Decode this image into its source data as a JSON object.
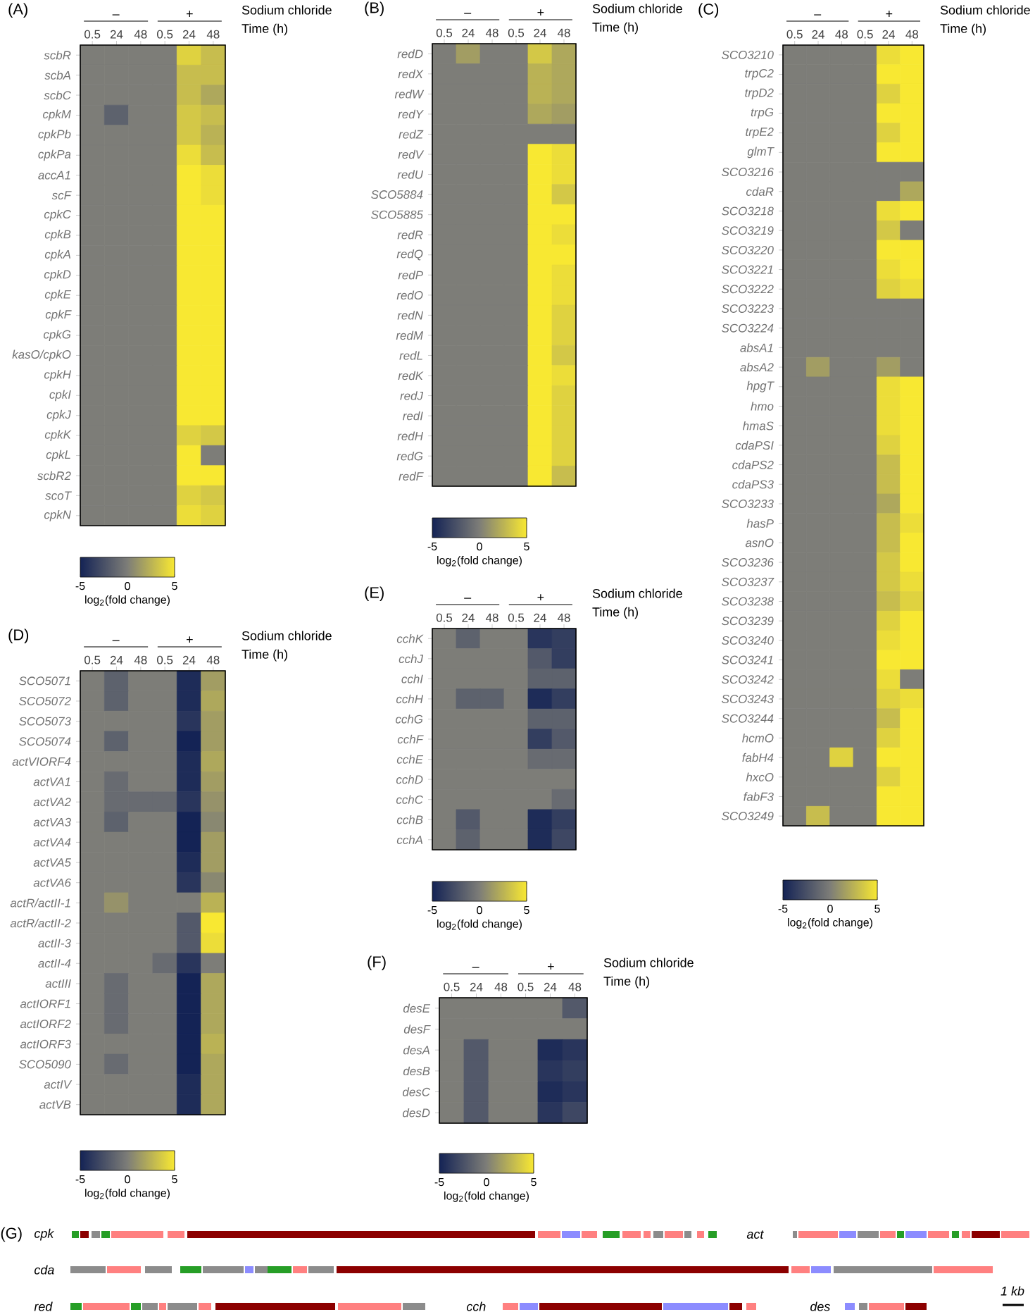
{
  "chart_data": [
    {
      "type": "heatmap",
      "title": "(A)",
      "xlabel": "Time (h)",
      "clabel": "log$_{2}$(fold change)",
      "annotations": [
        "–",
        "+",
        "Sodium chloride"
      ],
      "categories": [
        "0.5",
        "24",
        "48",
        "0.5",
        "24",
        "48"
      ],
      "y_categories": [
        "scbR",
        "scbA",
        "scbC",
        "cpkM",
        "cpkPb",
        "cpkPa",
        "accA1",
        "scF",
        "cpkC",
        "cpkB",
        "cpkA",
        "cpkD",
        "cpkE",
        "cpkF",
        "cpkG",
        "kasO/cpkO",
        "cpkH",
        "cpkI",
        "cpkJ",
        "cpkK",
        "cpkL",
        "scbR2",
        "scoT",
        "cpkN"
      ],
      "cells": [
        [
          0,
          0,
          0,
          0,
          4,
          3
        ],
        [
          0,
          0,
          0,
          0,
          3,
          3
        ],
        [
          0,
          0,
          0,
          0,
          3,
          2
        ],
        [
          0,
          -1.5,
          0,
          0,
          3.5,
          3
        ],
        [
          0,
          0,
          0,
          0,
          3.5,
          2.5
        ],
        [
          0,
          0,
          0,
          0,
          4.5,
          3
        ],
        [
          0,
          0,
          0,
          0,
          5,
          4.5
        ],
        [
          0,
          0,
          0,
          0,
          5,
          4.5
        ],
        [
          0,
          0,
          0,
          0,
          5,
          5
        ],
        [
          0,
          0,
          0,
          0,
          5,
          5
        ],
        [
          0,
          0,
          0,
          0,
          5,
          5
        ],
        [
          0,
          0,
          0,
          0,
          5,
          5
        ],
        [
          0,
          0,
          0,
          0,
          5,
          5
        ],
        [
          0,
          0,
          0,
          0,
          5,
          5
        ],
        [
          0,
          0,
          0,
          0,
          5,
          5
        ],
        [
          0,
          0,
          0,
          0,
          5,
          5
        ],
        [
          0,
          0,
          0,
          0,
          5,
          5
        ],
        [
          0,
          0,
          0,
          0,
          5,
          5
        ],
        [
          0,
          0,
          0,
          0,
          5,
          5
        ],
        [
          0,
          0,
          0,
          0,
          4,
          3.5
        ],
        [
          0,
          0,
          0,
          0,
          5,
          0
        ],
        [
          0,
          0,
          0,
          0,
          5,
          5
        ],
        [
          0,
          0,
          0,
          0,
          4,
          3.5
        ],
        [
          0,
          0,
          0,
          0,
          4.5,
          4
        ]
      ],
      "clim": [
        -5,
        5
      ],
      "cticks": [
        -5,
        0,
        5
      ]
    },
    {
      "type": "heatmap",
      "title": "(B)",
      "xlabel": "Time (h)",
      "clabel": "log$_{2}$(fold change)",
      "annotations": [
        "–",
        "+",
        "Sodium chloride"
      ],
      "categories": [
        "0.5",
        "24",
        "48",
        "0.5",
        "24",
        "48"
      ],
      "y_categories": [
        "redD",
        "redX",
        "redW",
        "redY",
        "redZ",
        "redV",
        "redU",
        "SCO5884",
        "SCO5885",
        "redR",
        "redQ",
        "redP",
        "redO",
        "redN",
        "redM",
        "redL",
        "redK",
        "redJ",
        "redI",
        "redH",
        "redG",
        "redF"
      ],
      "cells": [
        [
          0,
          1.5,
          0,
          0,
          3.5,
          2
        ],
        [
          0,
          0,
          0,
          0,
          2.5,
          2
        ],
        [
          0,
          0,
          0,
          0,
          2.5,
          2
        ],
        [
          0,
          0,
          0,
          0,
          2,
          1.5
        ],
        [
          0,
          0,
          0,
          0,
          0,
          0
        ],
        [
          0,
          0,
          0,
          0,
          5,
          4.5
        ],
        [
          0,
          0,
          0,
          0,
          5,
          4.5
        ],
        [
          0,
          0,
          0,
          0,
          5,
          3.5
        ],
        [
          0,
          0,
          0,
          0,
          5,
          5
        ],
        [
          0,
          0,
          0,
          0,
          5,
          4.5
        ],
        [
          0,
          0,
          0,
          0,
          5,
          5
        ],
        [
          0,
          0,
          0,
          0,
          5,
          4.5
        ],
        [
          0,
          0,
          0,
          0,
          5,
          4.5
        ],
        [
          0,
          0,
          0,
          0,
          5,
          4
        ],
        [
          0,
          0,
          0,
          0,
          5,
          4
        ],
        [
          0,
          0,
          0,
          0,
          5,
          3.5
        ],
        [
          0,
          0,
          0,
          0,
          5,
          4.5
        ],
        [
          0,
          0,
          0,
          0,
          5,
          4
        ],
        [
          0,
          0,
          0,
          0,
          5,
          4
        ],
        [
          0,
          0,
          0,
          0,
          5,
          4
        ],
        [
          0,
          0,
          0,
          0,
          5,
          4
        ],
        [
          0,
          0,
          0,
          0,
          5,
          3
        ]
      ],
      "clim": [
        -5,
        5
      ],
      "cticks": [
        -5,
        0,
        5
      ]
    },
    {
      "type": "heatmap",
      "title": "(C)",
      "xlabel": "Time (h)",
      "clabel": "log$_{2}$(fold change)",
      "annotations": [
        "–",
        "+",
        "Sodium chloride"
      ],
      "categories": [
        "0.5",
        "24",
        "48",
        "0.5",
        "24",
        "48"
      ],
      "y_categories": [
        "SCO3210",
        "trpC2",
        "trpD2",
        "trpG",
        "trpE2",
        "glmT",
        "SCO3216",
        "cdaR",
        "SCO3218",
        "SCO3219",
        "SCO3220",
        "SCO3221",
        "SCO3222",
        "SCO3223",
        "SCO3224",
        "absA1",
        "absA2",
        "hpgT",
        "hmo",
        "hmaS",
        "cdaPSI",
        "cdaPS2",
        "cdaPS3",
        "SCO3233",
        "hasP",
        "asnO",
        "SCO3236",
        "SCO3237",
        "SCO3238",
        "SCO3239",
        "SCO3240",
        "SCO3241",
        "SCO3242",
        "SCO3243",
        "SCO3244",
        "hcmO",
        "fabH4",
        "hxcO",
        "fabF3",
        "SCO3249"
      ],
      "cells": [
        [
          0,
          0,
          0,
          0,
          4.5,
          5
        ],
        [
          0,
          0,
          0,
          0,
          5,
          5
        ],
        [
          0,
          0,
          0,
          0,
          4,
          5
        ],
        [
          0,
          0,
          0,
          0,
          5,
          5
        ],
        [
          0,
          0,
          0,
          0,
          4,
          5
        ],
        [
          0,
          0,
          0,
          0,
          5,
          5
        ],
        [
          0,
          0,
          0,
          0,
          0,
          0
        ],
        [
          0,
          0,
          0,
          0,
          0,
          2
        ],
        [
          0,
          0,
          0,
          0,
          4.5,
          5
        ],
        [
          0,
          0,
          0,
          0,
          3.5,
          0
        ],
        [
          0,
          0,
          0,
          0,
          5,
          5
        ],
        [
          0,
          0,
          0,
          0,
          4.5,
          5
        ],
        [
          0,
          0,
          0,
          0,
          4,
          4.5
        ],
        [
          0,
          0,
          0,
          0,
          0,
          0
        ],
        [
          0,
          0,
          0,
          0,
          0,
          0
        ],
        [
          0,
          0,
          0,
          0,
          0,
          0
        ],
        [
          0,
          1.5,
          0,
          0,
          1.5,
          0
        ],
        [
          0,
          0,
          0,
          0,
          4.5,
          5
        ],
        [
          0,
          0,
          0,
          0,
          4.5,
          5
        ],
        [
          0,
          0,
          0,
          0,
          4.5,
          5
        ],
        [
          0,
          0,
          0,
          0,
          4,
          5
        ],
        [
          0,
          0,
          0,
          0,
          3,
          5
        ],
        [
          0,
          0,
          0,
          0,
          3,
          5
        ],
        [
          0,
          0,
          0,
          0,
          2,
          5
        ],
        [
          0,
          0,
          0,
          0,
          3,
          4.5
        ],
        [
          0,
          0,
          0,
          0,
          3,
          5
        ],
        [
          0,
          0,
          0,
          0,
          3.5,
          5
        ],
        [
          0,
          0,
          0,
          0,
          3.5,
          4.5
        ],
        [
          0,
          0,
          0,
          0,
          3,
          4
        ],
        [
          0,
          0,
          0,
          0,
          4,
          5
        ],
        [
          0,
          0,
          0,
          0,
          4.5,
          5
        ],
        [
          0,
          0,
          0,
          0,
          5,
          5
        ],
        [
          0,
          0,
          0,
          0,
          4.5,
          0
        ],
        [
          0,
          0,
          0,
          0,
          4,
          4.5
        ],
        [
          0,
          0,
          0,
          0,
          3,
          5
        ],
        [
          0,
          0,
          0,
          0,
          4,
          5
        ],
        [
          0,
          0,
          4,
          0,
          5,
          5
        ],
        [
          0,
          0,
          0,
          0,
          4,
          5
        ],
        [
          0,
          0,
          0,
          0,
          5,
          5
        ],
        [
          0,
          3,
          0,
          0,
          5,
          5
        ]
      ],
      "clim": [
        -5,
        5
      ],
      "cticks": [
        -5,
        0,
        5
      ]
    },
    {
      "type": "heatmap",
      "title": "(D)",
      "xlabel": "Time (h)",
      "clabel": "log$_{2}$(fold change)",
      "annotations": [
        "–",
        "+",
        "Sodium chloride"
      ],
      "categories": [
        "0.5",
        "24",
        "48",
        "0.5",
        "24",
        "48"
      ],
      "y_categories": [
        "SCO5071",
        "SCO5072",
        "SCO5073",
        "SCO5074",
        "actVIORF4",
        "actVA1",
        "actVA2",
        "actVA3",
        "actVA4",
        "actVA5",
        "actVA6",
        "actR/actII-1",
        "actR/actII-2",
        "actII-3",
        "actII-4",
        "actIII",
        "actIORF1",
        "actIORF2",
        "actIORF3",
        "SCO5090",
        "actIV",
        "actVB"
      ],
      "cells": [
        [
          0,
          -1.5,
          0,
          0,
          -4.5,
          1.5
        ],
        [
          0,
          -1.5,
          0,
          0,
          -4.5,
          2
        ],
        [
          0,
          0,
          0,
          0,
          -4,
          1.5
        ],
        [
          0,
          -1.5,
          0,
          0,
          -5,
          1.5
        ],
        [
          0,
          0,
          0,
          0,
          -4.5,
          2
        ],
        [
          0,
          -1,
          0,
          0,
          -4.5,
          1.5
        ],
        [
          0,
          -1,
          -1,
          -1,
          -4,
          1
        ],
        [
          0,
          -1.5,
          0,
          0,
          -5,
          0.5
        ],
        [
          0,
          0,
          0,
          0,
          -5,
          1.5
        ],
        [
          0,
          0,
          0,
          0,
          -4.5,
          1.5
        ],
        [
          0,
          0,
          0,
          0,
          -4,
          0.5
        ],
        [
          0,
          1,
          0,
          0,
          0,
          2.5
        ],
        [
          0,
          0,
          0,
          0,
          -2,
          5
        ],
        [
          0,
          0,
          0,
          0,
          -2,
          4.5
        ],
        [
          0,
          0,
          0,
          -1,
          -4,
          0
        ],
        [
          0,
          -1,
          0,
          0,
          -5,
          2
        ],
        [
          0,
          -1,
          0,
          0,
          -5,
          2
        ],
        [
          0,
          -1,
          0,
          0,
          -5,
          2
        ],
        [
          0,
          0,
          0,
          0,
          -5,
          2.5
        ],
        [
          0,
          -1,
          0,
          0,
          -5,
          2
        ],
        [
          0,
          0,
          0,
          0,
          -4.5,
          2
        ],
        [
          0,
          0,
          0,
          0,
          -4.5,
          2
        ]
      ],
      "clim": [
        -5,
        5
      ],
      "cticks": [
        -5,
        0,
        5
      ]
    },
    {
      "type": "heatmap",
      "title": "(E)",
      "xlabel": "Time (h)",
      "clabel": "log$_{2}$(fold change)",
      "annotations": [
        "–",
        "+",
        "Sodium chloride"
      ],
      "categories": [
        "0.5",
        "24",
        "48",
        "0.5",
        "24",
        "48"
      ],
      "y_categories": [
        "cchK",
        "cchJ",
        "cchI",
        "cchH",
        "cchG",
        "cchF",
        "cchE",
        "cchD",
        "cchC",
        "cchB",
        "cchA"
      ],
      "cells": [
        [
          0,
          -1.5,
          0,
          0,
          -4,
          -3.5
        ],
        [
          0,
          0,
          0,
          0,
          -2,
          -3.5
        ],
        [
          0,
          0,
          0,
          0,
          -1.5,
          -1.5
        ],
        [
          0,
          -1.5,
          -1.5,
          0,
          -4.5,
          -3.5
        ],
        [
          0,
          0,
          0,
          0,
          -1.5,
          -1.5
        ],
        [
          0,
          0,
          0,
          0,
          -3.5,
          -2
        ],
        [
          0,
          0,
          0,
          0,
          -1,
          -1
        ],
        [
          0,
          0,
          0,
          0,
          0,
          0
        ],
        [
          0,
          0,
          0,
          0,
          0,
          -1
        ],
        [
          0,
          -2,
          0,
          0,
          -4.5,
          -3.5
        ],
        [
          0,
          -1.5,
          0,
          0,
          -4.5,
          -3
        ]
      ],
      "clim": [
        -5,
        5
      ],
      "cticks": [
        -5,
        0,
        5
      ]
    },
    {
      "type": "heatmap",
      "title": "(F)",
      "xlabel": "Time (h)",
      "clabel": "log$_{2}$(fold change)",
      "annotations": [
        "–",
        "+",
        "Sodium chloride"
      ],
      "categories": [
        "0.5",
        "24",
        "48",
        "0.5",
        "24",
        "48"
      ],
      "y_categories": [
        "desE",
        "desF",
        "desA",
        "desB",
        "desC",
        "desD"
      ],
      "cells": [
        [
          0,
          0,
          0,
          0,
          0,
          -2
        ],
        [
          0,
          0,
          0,
          0,
          0,
          0
        ],
        [
          0,
          -2,
          0,
          0,
          -4.5,
          -4
        ],
        [
          0,
          -2,
          0,
          0,
          -4,
          -3.5
        ],
        [
          0,
          -2,
          0,
          0,
          -4.5,
          -4
        ],
        [
          0,
          -2,
          0,
          0,
          -4,
          -3
        ]
      ],
      "clim": [
        -5,
        5
      ],
      "cticks": [
        -5,
        0,
        5
      ]
    },
    {
      "type": "other",
      "title": "(G)",
      "annotations": [
        "cpk",
        "act",
        "cda",
        "red",
        "cch",
        "des",
        "1 kb"
      ]
    }
  ]
}
